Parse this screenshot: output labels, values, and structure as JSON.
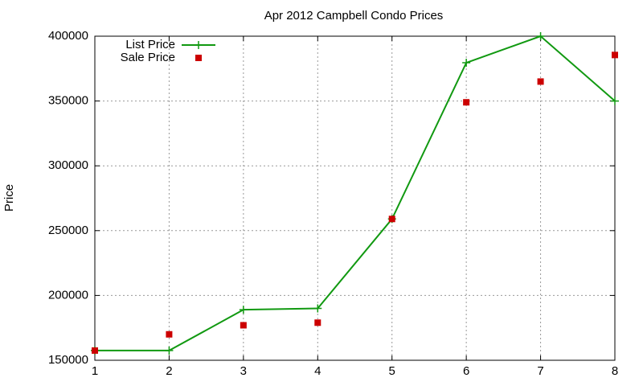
{
  "chart_data": {
    "type": "line",
    "title": "Apr 2012 Campbell Condo Prices",
    "y_label": "Price",
    "x": [
      1,
      2,
      3,
      4,
      5,
      6,
      7,
      8
    ],
    "series": [
      {
        "name": "List Price",
        "color": "#119911",
        "line": true,
        "marker": "plus",
        "values": [
          157500,
          157500,
          189000,
          190000,
          259000,
          379500,
          400000,
          350000
        ]
      },
      {
        "name": "Sale Price",
        "color": "#cc0000",
        "line": false,
        "marker": "square",
        "values": [
          157500,
          170000,
          177000,
          179000,
          259000,
          349000,
          365000,
          385500
        ]
      }
    ],
    "xlim": [
      1,
      8
    ],
    "xticks": [
      1,
      2,
      3,
      4,
      5,
      6,
      7,
      8
    ],
    "ylim": [
      150000,
      400000
    ],
    "yticks": [
      150000,
      200000,
      250000,
      300000,
      350000,
      400000
    ],
    "grid": true,
    "legend": "top-left"
  }
}
